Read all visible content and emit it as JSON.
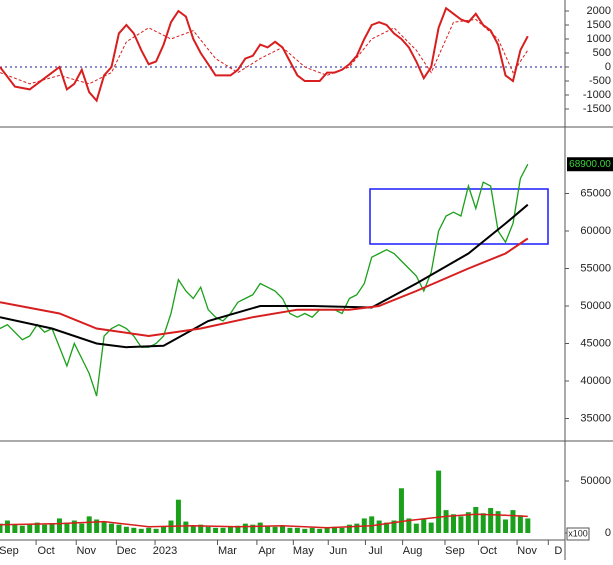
{
  "chart_data": [
    {
      "type": "line",
      "ylim": [
        -2143,
        2393
      ],
      "yticks": [
        -1500,
        -1000,
        -500,
        0,
        500,
        1000,
        1500,
        2000
      ],
      "xlim": [
        0,
        76
      ],
      "zero_line": true,
      "series": [
        {
          "color": "#d81e1e",
          "width": 2,
          "x": [
            0,
            2,
            4,
            6,
            8,
            9,
            10,
            11,
            12,
            13,
            14,
            15,
            16,
            17,
            18,
            19,
            20,
            21,
            22,
            23,
            24,
            25,
            26,
            27,
            28,
            29,
            30,
            31,
            32,
            33,
            34,
            35,
            36,
            37,
            38,
            39,
            40,
            41,
            42,
            43,
            44,
            45,
            46,
            47,
            48,
            49,
            50,
            51,
            52,
            53,
            54,
            55,
            56,
            57,
            58,
            59,
            60,
            61,
            62,
            63,
            64,
            65,
            66,
            67,
            68,
            69,
            70,
            71
          ],
          "values": [
            0,
            -700,
            -800,
            -400,
            0,
            -800,
            -600,
            -100,
            -900,
            -1200,
            -300,
            0,
            1200,
            1500,
            1200,
            600,
            100,
            200,
            800,
            1600,
            2000,
            1800,
            1000,
            500,
            100,
            -300,
            -300,
            -300,
            -100,
            300,
            400,
            800,
            700,
            900,
            700,
            200,
            -300,
            -500,
            -500,
            -500,
            -200,
            -200,
            -100,
            100,
            400,
            1000,
            1500,
            1600,
            1500,
            1200,
            1000,
            700,
            200,
            -400,
            0,
            1400,
            2100,
            1900,
            1700,
            1600,
            1900,
            1500,
            1300,
            800,
            -300,
            -500,
            600,
            1100
          ]
        },
        {
          "color": "#d81e1e",
          "width": 1,
          "dash": true,
          "x": [
            0,
            4,
            8,
            12,
            15,
            17,
            20,
            23,
            26,
            29,
            32,
            35,
            38,
            41,
            44,
            47,
            50,
            53,
            56,
            58,
            61,
            64,
            67,
            69,
            71
          ],
          "values": [
            -200,
            -600,
            -300,
            -600,
            -200,
            900,
            1400,
            1000,
            1300,
            300,
            -200,
            300,
            700,
            0,
            -300,
            0,
            1000,
            1400,
            600,
            -200,
            1600,
            1700,
            1000,
            -200,
            600
          ]
        }
      ]
    },
    {
      "type": "line",
      "ylim": [
        32133,
        73733
      ],
      "yticks": [
        35000,
        40000,
        45000,
        50000,
        55000,
        60000,
        65000
      ],
      "xlim": [
        0,
        76
      ],
      "last_price": {
        "value": 68900,
        "label": "68900.00"
      },
      "series": [
        {
          "color": "#1aa01a",
          "width": 1.3,
          "x": [
            0,
            1,
            2,
            3,
            4,
            5,
            6,
            7,
            8,
            9,
            10,
            11,
            12,
            13,
            14,
            15,
            16,
            17,
            18,
            19,
            20,
            21,
            22,
            23,
            24,
            25,
            26,
            27,
            28,
            29,
            30,
            31,
            32,
            33,
            34,
            35,
            36,
            37,
            38,
            39,
            40,
            41,
            42,
            43,
            44,
            45,
            46,
            47,
            48,
            49,
            50,
            51,
            52,
            53,
            54,
            55,
            56,
            57,
            58,
            59,
            60,
            61,
            62,
            63,
            64,
            65,
            66,
            67,
            68,
            69,
            70,
            71
          ],
          "values": [
            47000,
            47500,
            46500,
            45500,
            46000,
            47500,
            46500,
            47000,
            44500,
            42000,
            45000,
            43000,
            41000,
            38000,
            46000,
            47000,
            47500,
            47000,
            46000,
            44500,
            44500,
            45000,
            46000,
            49000,
            53500,
            52000,
            51000,
            52500,
            49500,
            48500,
            48000,
            49000,
            50500,
            51000,
            51500,
            53000,
            52500,
            52000,
            51000,
            49000,
            48500,
            49000,
            48500,
            49500,
            49500,
            49500,
            49000,
            51000,
            51500,
            53000,
            56500,
            57000,
            57500,
            57000,
            56000,
            55000,
            54000,
            52000,
            54500,
            60000,
            62000,
            62500,
            62000,
            66000,
            63000,
            66500,
            66000,
            60000,
            58500,
            61000,
            67000,
            68900
          ]
        },
        {
          "color": "#000000",
          "width": 2,
          "x": [
            0,
            7,
            13,
            17,
            22,
            28,
            35,
            42,
            50,
            56,
            63,
            68,
            71
          ],
          "values": [
            48500,
            47000,
            45000,
            44500,
            44700,
            48000,
            50000,
            50000,
            49800,
            53000,
            57000,
            61000,
            63500
          ]
        },
        {
          "color": "#d81e1e",
          "width": 2,
          "x": [
            0,
            8,
            13,
            20,
            27,
            34,
            40,
            47,
            51,
            56,
            63,
            68,
            71
          ],
          "values": [
            50500,
            49000,
            47000,
            46000,
            47000,
            48500,
            49500,
            49500,
            50000,
            52000,
            55000,
            57000,
            59000
          ]
        }
      ]
    },
    {
      "type": "bar",
      "ylim": [
        0,
        87500
      ],
      "yticks": [
        0,
        50000
      ],
      "xlim": [
        0,
        76
      ],
      "unit": "x100",
      "xticks": [
        {
          "value": 1.2,
          "label": "Sep"
        },
        {
          "value": 6.2,
          "label": "Oct"
        },
        {
          "value": 11.6,
          "label": "Nov"
        },
        {
          "value": 17,
          "label": "Dec"
        },
        {
          "value": 22.2,
          "label": "2023"
        },
        {
          "value": 30.6,
          "label": "Mar"
        },
        {
          "value": 35.9,
          "label": "Apr"
        },
        {
          "value": 40.8,
          "label": "May"
        },
        {
          "value": 45.5,
          "label": "Jun"
        },
        {
          "value": 50.5,
          "label": "Jul"
        },
        {
          "value": 55.5,
          "label": "Aug"
        },
        {
          "value": 61.2,
          "label": "Sep"
        },
        {
          "value": 65.7,
          "label": "Oct"
        },
        {
          "value": 70.9,
          "label": "Nov"
        },
        {
          "value": 75.1,
          "label": "D"
        }
      ],
      "series": [
        {
          "style": "bar",
          "color": "#1aa01a",
          "x": [
            0,
            1,
            2,
            3,
            4,
            5,
            6,
            7,
            8,
            9,
            10,
            11,
            12,
            13,
            14,
            15,
            16,
            17,
            18,
            19,
            20,
            21,
            22,
            23,
            24,
            25,
            26,
            27,
            28,
            29,
            30,
            31,
            32,
            33,
            34,
            35,
            36,
            37,
            38,
            39,
            40,
            41,
            42,
            43,
            44,
            45,
            46,
            47,
            48,
            49,
            50,
            51,
            52,
            53,
            54,
            55,
            56,
            57,
            58,
            59,
            60,
            61,
            62,
            63,
            64,
            65,
            66,
            67,
            68,
            69,
            70,
            71
          ],
          "values": [
            9000,
            12000,
            8000,
            7000,
            9000,
            10000,
            8000,
            9000,
            14000,
            10000,
            12000,
            9000,
            16000,
            13000,
            11000,
            9000,
            8000,
            6000,
            5000,
            4000,
            5000,
            4000,
            6000,
            12000,
            32000,
            11000,
            7000,
            8000,
            6000,
            5000,
            5000,
            6000,
            7000,
            9000,
            8000,
            10000,
            7000,
            6000,
            7000,
            5000,
            5000,
            4000,
            5000,
            4000,
            5000,
            6000,
            5000,
            8000,
            9000,
            14000,
            16000,
            12000,
            10000,
            12000,
            43000,
            14000,
            9000,
            13000,
            10000,
            60000,
            22000,
            18000,
            16000,
            20000,
            25000,
            19000,
            24000,
            21000,
            13000,
            22000,
            17000,
            14000
          ]
        },
        {
          "style": "line",
          "color": "#d81e1e",
          "x": [
            0,
            8,
            14,
            20,
            26,
            32,
            38,
            44,
            50,
            55,
            60,
            64,
            68,
            71
          ],
          "values": [
            8000,
            9000,
            11000,
            6000,
            7000,
            6000,
            7000,
            5000,
            7000,
            12000,
            16000,
            18000,
            17000,
            16000
          ]
        }
      ]
    }
  ]
}
